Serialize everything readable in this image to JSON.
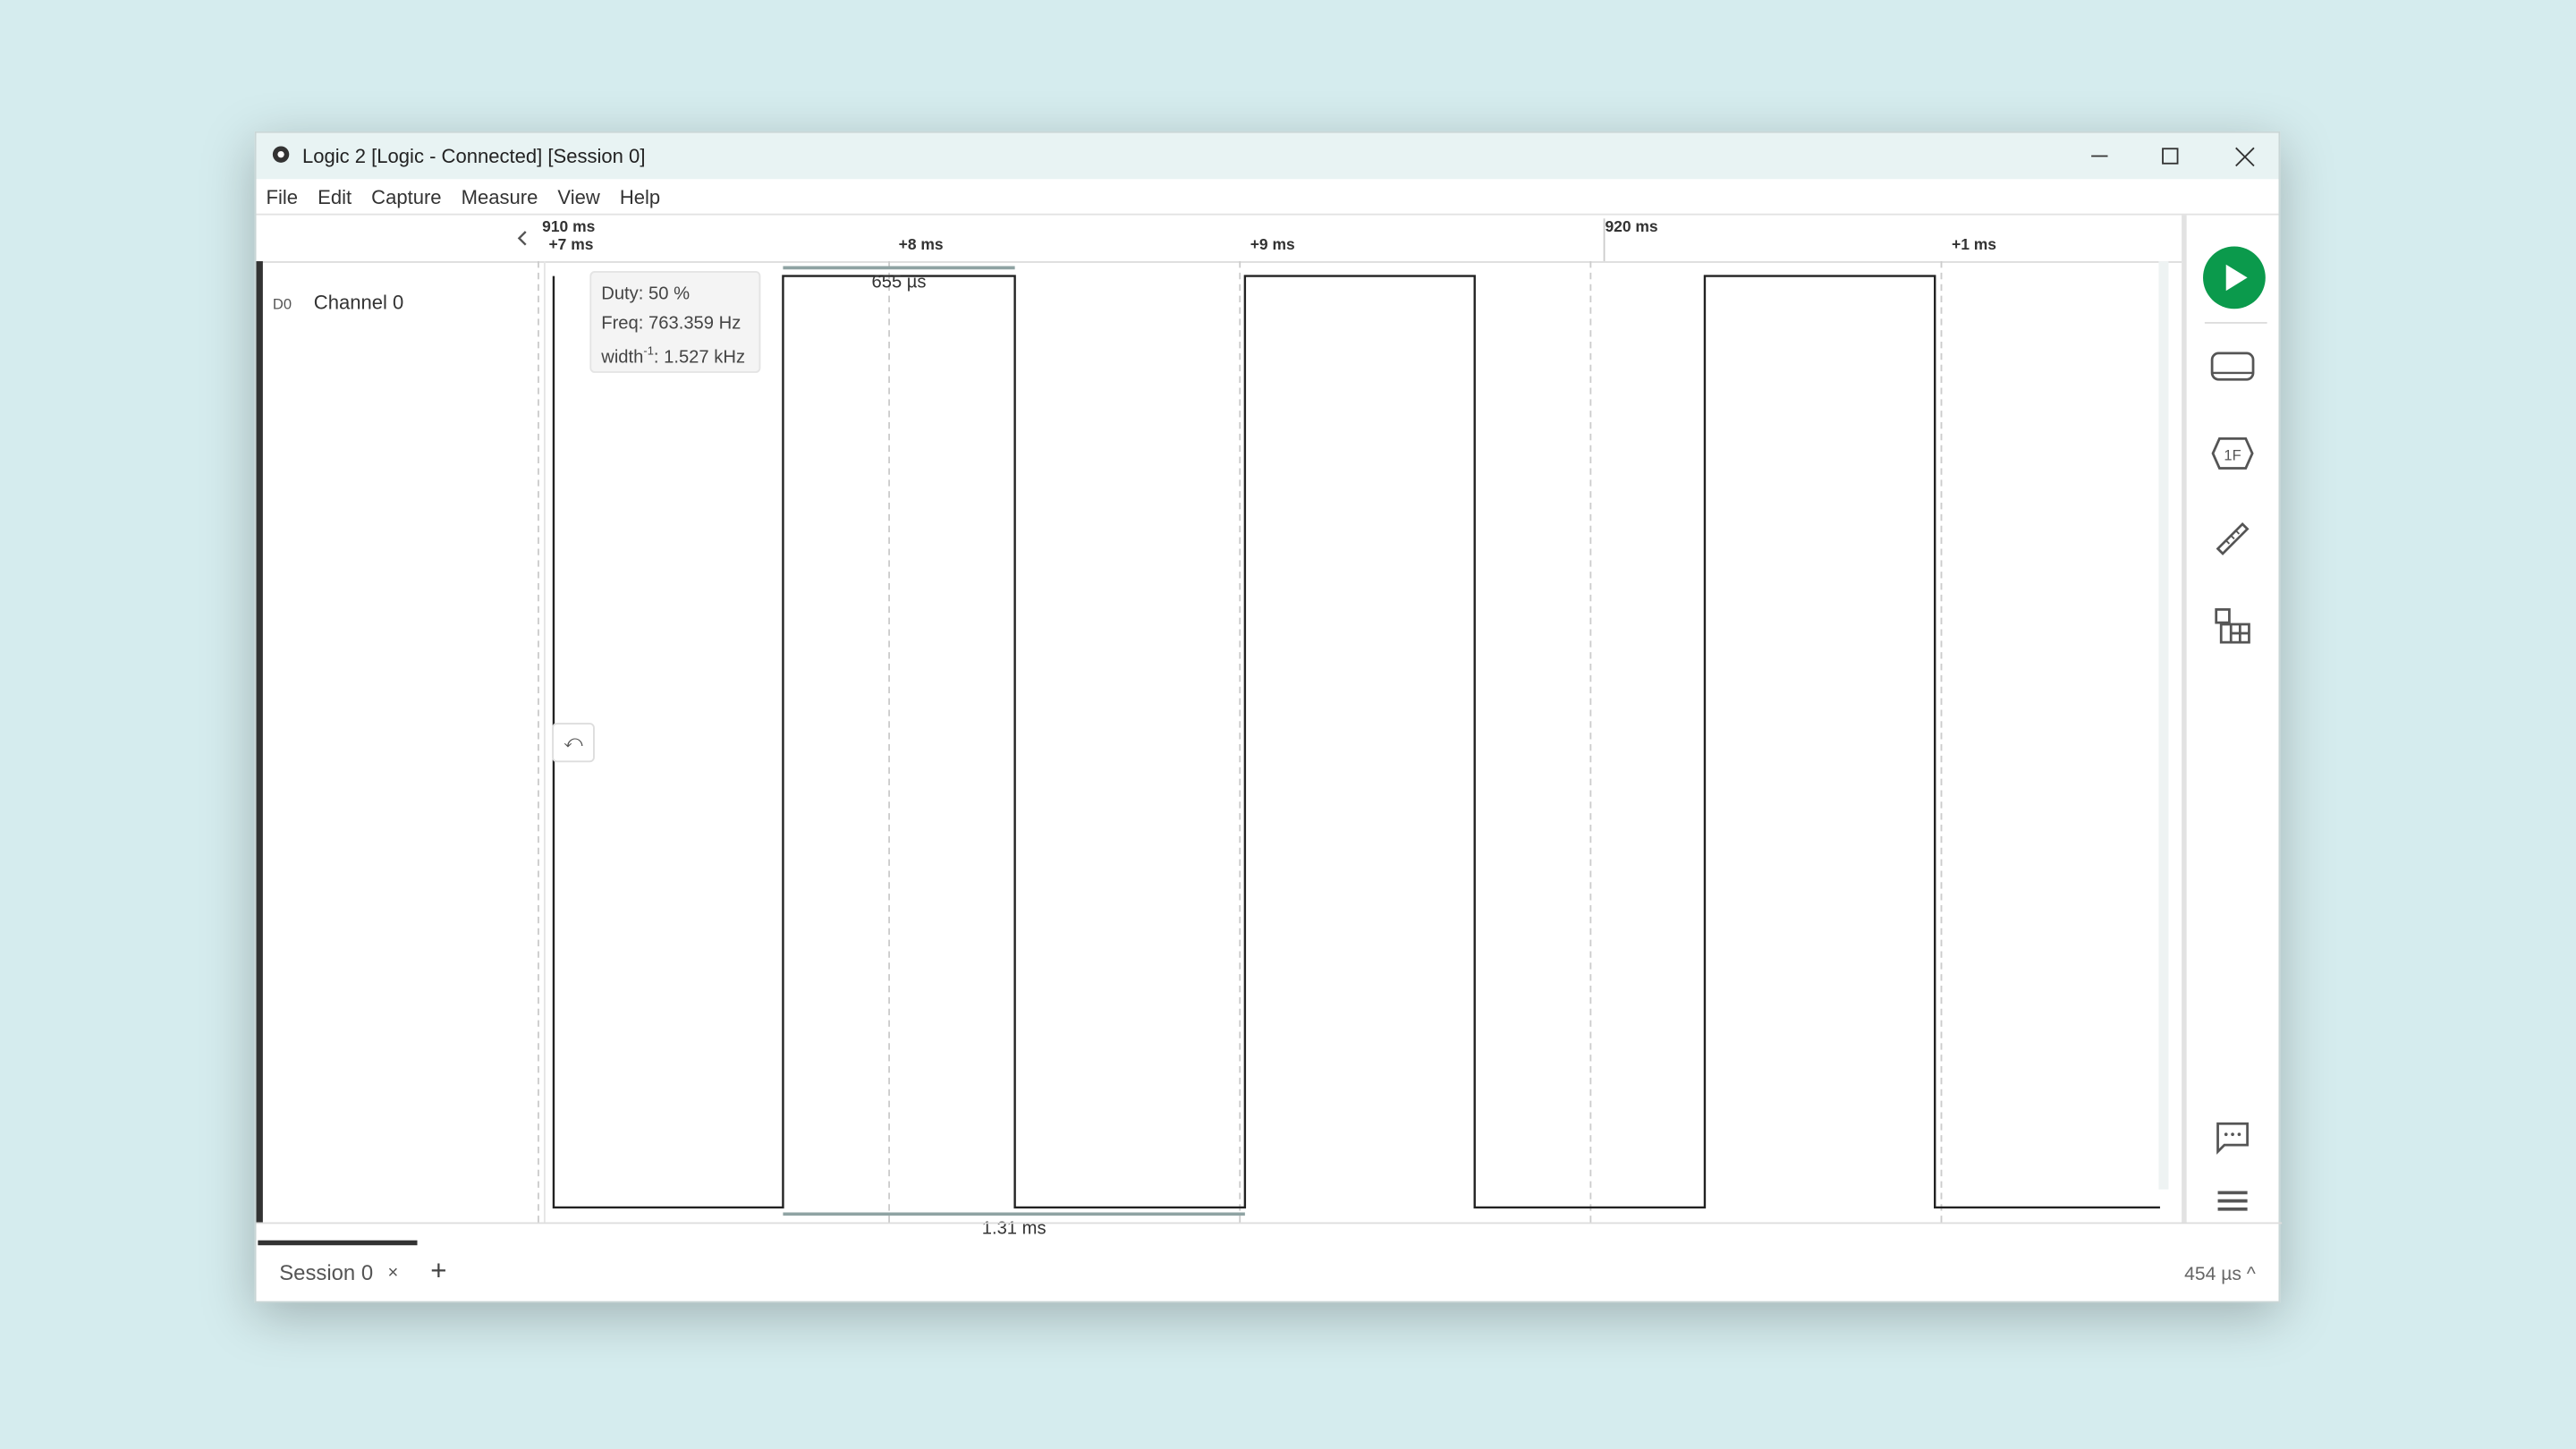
{
  "window": {
    "title": "Logic 2 [Logic - Connected] [Session 0]",
    "controls": [
      "minimize",
      "maximize",
      "close"
    ]
  },
  "menu": [
    "File",
    "Edit",
    "Capture",
    "Measure",
    "View",
    "Help"
  ],
  "ruler": {
    "collapse_icon": "chevron-left-icon",
    "major_label": "910 ms",
    "major_label_2": "920 ms",
    "ticks": [
      "+7 ms",
      "+8 ms",
      "+9 ms",
      "+1 ms"
    ]
  },
  "channel": {
    "id": "D0",
    "name": "Channel 0"
  },
  "measurement": {
    "duty": "Duty: 50 %",
    "freq": "Freq: 763.359 Hz",
    "width_prefix": "width",
    "width_sup": "-1",
    "width_value": ": 1.527 kHz",
    "pulse_width": "655 µs",
    "period": "1.31 ms"
  },
  "waveform": {
    "initial_level": "low",
    "view_start_ms": 917.02,
    "view_end_ms": 921.6,
    "edges_ms": [
      917.674,
      918.335,
      918.991,
      919.646,
      920.302,
      920.958
    ]
  },
  "sidebar_icons": [
    "play-icon",
    "analyzers-icon",
    "extensions-hex-icon",
    "measure-ruler-icon",
    "layout-grid-icon",
    "comment-icon",
    "menu-icon"
  ],
  "colors": {
    "accent": "#0b9a4c",
    "signal": "#222222",
    "background": "#d5ecee"
  },
  "tabs": [
    {
      "label": "Session 0"
    }
  ],
  "status": {
    "timing": "454 µs"
  }
}
